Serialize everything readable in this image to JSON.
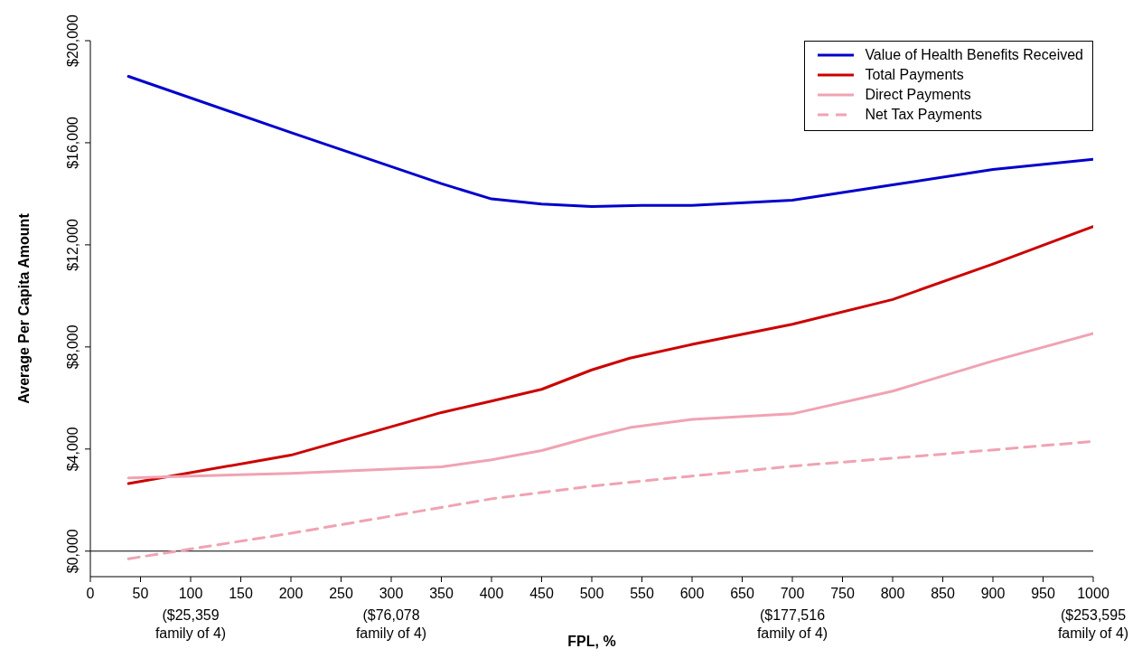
{
  "chart_data": {
    "type": "line",
    "xlabel": "FPL, %",
    "ylabel": "Average Per Capita Amount",
    "xlim": [
      0,
      1000
    ],
    "xticks": [
      0,
      50,
      {
        "value": 100,
        "label": "100\n($25,359\nfamily of 4)"
      },
      150,
      200,
      250,
      {
        "value": 300,
        "label": "300\n($76,078\nfamily of 4)"
      },
      350,
      400,
      450,
      500,
      550,
      600,
      650,
      {
        "value": 700,
        "label": "700\n($177,516\nfamily of 4)"
      },
      750,
      800,
      850,
      900,
      950,
      {
        "value": 1000,
        "label": "1000\n($253,595\nfamily of 4)"
      }
    ],
    "ylim": [
      -1000,
      20000
    ],
    "yticks": [
      {
        "value": 0,
        "label": "$0,000"
      },
      {
        "value": 4000,
        "label": "$4,000"
      },
      {
        "value": 8000,
        "label": "$8,000"
      },
      {
        "value": 12000,
        "label": "$12,000"
      },
      {
        "value": 16000,
        "label": "$16,000"
      },
      {
        "value": 20000,
        "label": "$20,000"
      }
    ],
    "grid": false,
    "legend": "top right",
    "marker": "none",
    "ref_lines": [
      {
        "axis": "y",
        "value": 0,
        "color": "#000000"
      }
    ],
    "series": [
      {
        "name": "Value of Health Benefits Received",
        "color": "#0000cc",
        "line_style": "solid",
        "x": [
          38,
          200,
          350,
          400,
          450,
          500,
          550,
          600,
          700,
          800,
          900,
          1000
        ],
        "values": [
          18600,
          16400,
          14400,
          13800,
          13600,
          13500,
          13550,
          13550,
          13750,
          14350,
          14950,
          15350
        ]
      },
      {
        "name": "Total Payments",
        "color": "#cc0000",
        "line_style": "solid",
        "x": [
          38,
          200,
          350,
          400,
          450,
          500,
          538,
          600,
          700,
          800,
          900,
          1000
        ],
        "values": [
          2650,
          3760,
          5430,
          5880,
          6340,
          7100,
          7560,
          8100,
          8890,
          9860,
          11250,
          12720
        ]
      },
      {
        "name": "Direct Payments",
        "color": "#f0a3b3",
        "line_style": "solid",
        "x": [
          38,
          200,
          350,
          400,
          450,
          500,
          538,
          600,
          700,
          800,
          900,
          1000
        ],
        "values": [
          2870,
          3050,
          3300,
          3580,
          3940,
          4480,
          4840,
          5160,
          5380,
          6270,
          7450,
          8530
        ]
      },
      {
        "name": "Net Tax Payments",
        "color": "#f0a3b3",
        "line_style": "dashed",
        "x": [
          38,
          200,
          400,
          500,
          700,
          850,
          1000
        ],
        "values": [
          -300,
          700,
          2050,
          2550,
          3330,
          3800,
          4300
        ]
      }
    ]
  }
}
